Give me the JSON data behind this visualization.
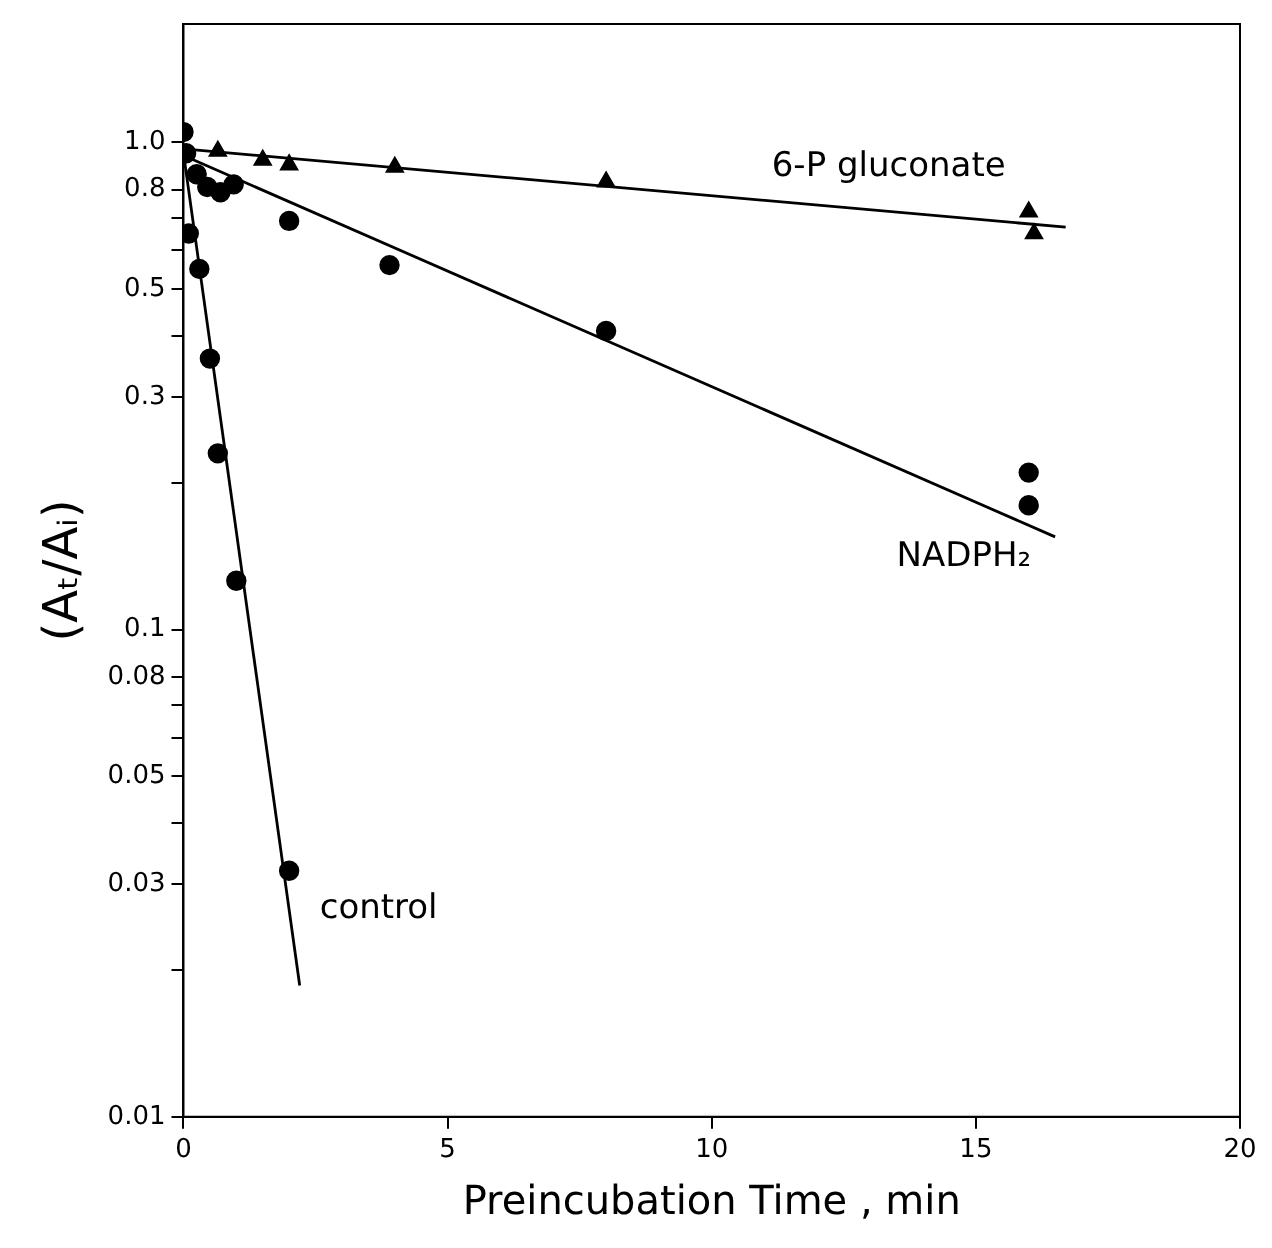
{
  "chart_data": {
    "type": "scatter",
    "xlabel": "Preincubation Time , min",
    "ylabel": "(Aₜ/Aᵢ)",
    "xlim": [
      0,
      20
    ],
    "xticks": [
      0,
      5,
      10,
      15,
      20
    ],
    "ylim": [
      0.01,
      1.75
    ],
    "log": "y",
    "grid": false,
    "legend": false,
    "yticks": [
      0.01,
      {
        "value": 0.02,
        "label": null
      },
      0.03,
      {
        "value": 0.04,
        "label": null
      },
      0.05,
      {
        "value": 0.06,
        "label": null
      },
      {
        "value": 0.07,
        "label": null
      },
      0.08,
      0.1,
      {
        "value": 0.2,
        "label": null
      },
      0.3,
      {
        "value": 0.4,
        "label": null
      },
      0.5,
      {
        "value": 0.6,
        "label": null
      },
      {
        "value": 0.7,
        "label": null
      },
      0.8,
      {
        "value": 1,
        "label": "1.0"
      }
    ],
    "series": [
      {
        "marker": "circle",
        "color": "#000000",
        "x": [
          0,
          0.1,
          0.3,
          0.5,
          0.65,
          1,
          2
        ],
        "values": [
          1.05,
          0.65,
          0.55,
          0.36,
          0.23,
          0.126,
          0.032
        ]
      },
      {
        "marker": "circle",
        "color": "#000000",
        "x": [
          0.05,
          0.25,
          0.45,
          0.7,
          0.95,
          2,
          3.9,
          8,
          16,
          16
        ],
        "values": [
          0.95,
          0.86,
          0.81,
          0.79,
          0.82,
          0.69,
          0.56,
          0.41,
          0.21,
          0.18
        ]
      },
      {
        "marker": "triangle",
        "color": "#000000",
        "x": [
          0.65,
          1.5,
          2,
          4,
          8,
          16,
          16.1
        ],
        "values": [
          0.96,
          0.92,
          0.9,
          0.89,
          0.83,
          0.72,
          0.65
        ]
      },
      {
        "type": "line",
        "name": "control",
        "marker": "none",
        "color": "#000000",
        "x": [
          0,
          2.2
        ],
        "values": [
          0.95,
          0.0186
        ]
      },
      {
        "type": "line",
        "name": "NADPH₂",
        "marker": "none",
        "color": "#000000",
        "x": [
          0,
          16.5
        ],
        "values": [
          0.94,
          0.155
        ]
      },
      {
        "type": "line",
        "name": "6-P gluconate",
        "marker": "none",
        "color": "#000000",
        "x": [
          0,
          16.7
        ],
        "values": [
          0.97,
          0.67
        ]
      }
    ]
  }
}
